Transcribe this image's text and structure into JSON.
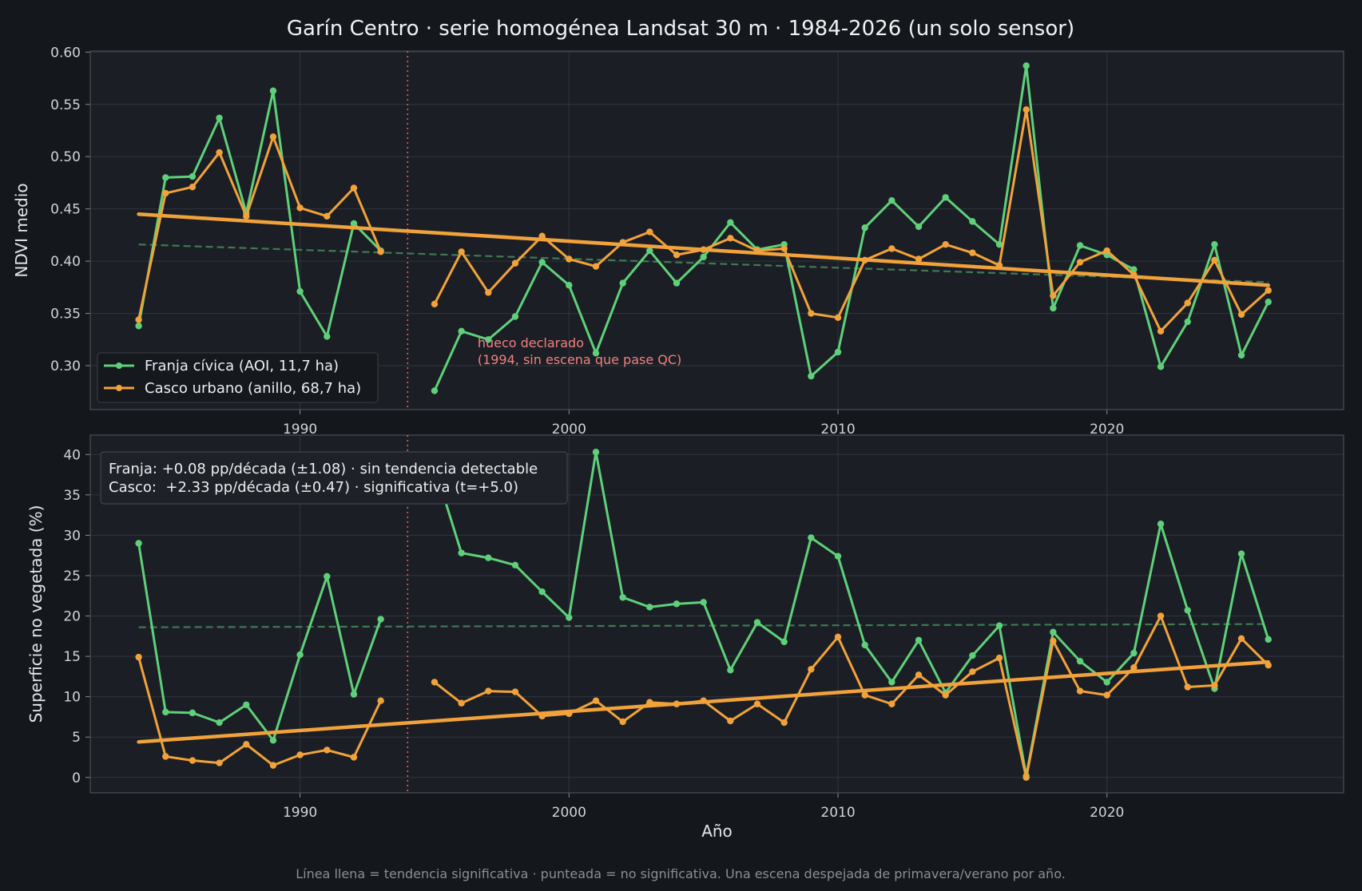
{
  "title": "Garín Centro · serie homogénea Landsat 30 m · 1984-2026 (un solo sensor)",
  "footer": "Línea llena = tendencia significativa · punteada = no significativa. Una escena despejada de primavera/verano por año.",
  "colors": {
    "background": "#14171b",
    "panel": "#1b1f25",
    "franja": "#5fd07a",
    "casco": "#f2a23a",
    "trend_dashed": "#3e7a52",
    "gap_line": "#e06060",
    "annotation": "#f08080"
  },
  "chart_data": [
    {
      "type": "line",
      "ylabel": "NDVI medio",
      "xlabel": "",
      "xlim": [
        1982.2,
        2028.8
      ],
      "ylim": [
        0.258,
        0.601
      ],
      "yticks": [
        0.3,
        0.35,
        0.4,
        0.45,
        0.5,
        0.55,
        0.6
      ],
      "xticks": [
        1990,
        2000,
        2010,
        2020
      ],
      "grid": true,
      "legend_position": "lower-left",
      "gap_year": 1994,
      "annotation": {
        "line1": "hueco declarado",
        "line2": "(1994, sin escena que pase QC)",
        "x": 1996.6,
        "y": 0.31
      },
      "x": [
        1984,
        1985,
        1986,
        1987,
        1988,
        1989,
        1990,
        1991,
        1992,
        1993,
        1995,
        1996,
        1997,
        1998,
        1999,
        2000,
        2001,
        2002,
        2003,
        2004,
        2005,
        2006,
        2007,
        2008,
        2009,
        2010,
        2011,
        2012,
        2013,
        2014,
        2015,
        2016,
        2017,
        2018,
        2019,
        2020,
        2021,
        2022,
        2023,
        2024,
        2025,
        2026
      ],
      "series": [
        {
          "name": "Franja cívica (AOI, 11,7 ha)",
          "color": "#5fd07a",
          "values": [
            0.338,
            0.48,
            0.481,
            0.537,
            0.446,
            0.563,
            0.371,
            0.328,
            0.436,
            0.41,
            0.276,
            0.333,
            0.325,
            0.347,
            0.399,
            0.377,
            0.312,
            0.379,
            0.41,
            0.379,
            0.404,
            0.437,
            0.411,
            0.416,
            0.29,
            0.313,
            0.432,
            0.458,
            0.433,
            0.461,
            0.438,
            0.416,
            0.587,
            0.355,
            0.415,
            0.406,
            0.392,
            0.299,
            0.342,
            0.416,
            0.31,
            0.361
          ],
          "trend": {
            "from": [
              1984,
              0.416
            ],
            "to": [
              2026,
              0.38
            ],
            "style": "dashed"
          }
        },
        {
          "name": "Casco urbano (anillo, 68,7 ha)",
          "color": "#f2a23a",
          "values": [
            0.344,
            0.465,
            0.471,
            0.504,
            0.443,
            0.519,
            0.451,
            0.443,
            0.47,
            0.409,
            0.359,
            0.409,
            0.37,
            0.398,
            0.424,
            0.402,
            0.395,
            0.418,
            0.428,
            0.406,
            0.411,
            0.422,
            0.41,
            0.412,
            0.35,
            0.346,
            0.401,
            0.412,
            0.402,
            0.416,
            0.408,
            0.396,
            0.545,
            0.367,
            0.399,
            0.41,
            0.387,
            0.333,
            0.36,
            0.401,
            0.349,
            0.372
          ],
          "trend": {
            "from": [
              1984,
              0.445
            ],
            "to": [
              2026,
              0.377
            ],
            "style": "solid"
          }
        }
      ]
    },
    {
      "type": "line",
      "ylabel": "Superficie no vegetada (%)",
      "xlabel": "Año",
      "xlim": [
        1982.2,
        2028.8
      ],
      "ylim": [
        -1.9,
        42.4
      ],
      "yticks": [
        0,
        5,
        10,
        15,
        20,
        25,
        30,
        35,
        40
      ],
      "xticks": [
        1990,
        2000,
        2010,
        2020
      ],
      "grid": true,
      "gap_year": 1994,
      "stats_box": {
        "line1": "Franja: +0.08 pp/década (±1.08) · sin tendencia detectable",
        "line2": "Casco:  +2.33 pp/década (±0.47) · significativa (t=+5.0)"
      },
      "x": [
        1984,
        1985,
        1986,
        1987,
        1988,
        1989,
        1990,
        1991,
        1992,
        1993,
        1995,
        1996,
        1997,
        1998,
        1999,
        2000,
        2001,
        2002,
        2003,
        2004,
        2005,
        2006,
        2007,
        2008,
        2009,
        2010,
        2011,
        2012,
        2013,
        2014,
        2015,
        2016,
        2017,
        2018,
        2019,
        2020,
        2021,
        2022,
        2023,
        2024,
        2025,
        2026
      ],
      "series": [
        {
          "name": "Franja cívica (AOI, 11,7 ha)",
          "color": "#5fd07a",
          "values": [
            29.0,
            8.1,
            8.0,
            6.8,
            9.0,
            4.6,
            15.2,
            24.9,
            10.3,
            19.6,
            38.5,
            27.8,
            27.2,
            26.3,
            23.0,
            19.8,
            40.3,
            22.3,
            21.1,
            21.5,
            21.7,
            13.3,
            19.2,
            16.8,
            29.7,
            27.4,
            16.4,
            11.8,
            17.0,
            10.5,
            15.1,
            18.8,
            0.2,
            18.0,
            14.4,
            11.8,
            15.4,
            31.4,
            20.7,
            11.0,
            27.7,
            17.1
          ],
          "trend": {
            "from": [
              1984,
              18.6
            ],
            "to": [
              2026,
              19.0
            ],
            "style": "dashed"
          }
        },
        {
          "name": "Casco urbano (anillo, 68,7 ha)",
          "color": "#f2a23a",
          "values": [
            14.9,
            2.6,
            2.1,
            1.8,
            4.1,
            1.5,
            2.8,
            3.4,
            2.5,
            9.5,
            11.8,
            9.2,
            10.7,
            10.6,
            7.6,
            7.9,
            9.5,
            6.9,
            9.3,
            9.1,
            9.5,
            7.0,
            9.1,
            6.8,
            13.4,
            17.4,
            10.2,
            9.1,
            12.7,
            10.2,
            13.1,
            14.8,
            0.0,
            16.9,
            10.7,
            10.2,
            13.6,
            20.0,
            11.2,
            11.4,
            17.2,
            13.9
          ],
          "trend": {
            "from": [
              1984,
              4.4
            ],
            "to": [
              2026,
              14.3
            ],
            "style": "solid"
          }
        }
      ]
    }
  ]
}
